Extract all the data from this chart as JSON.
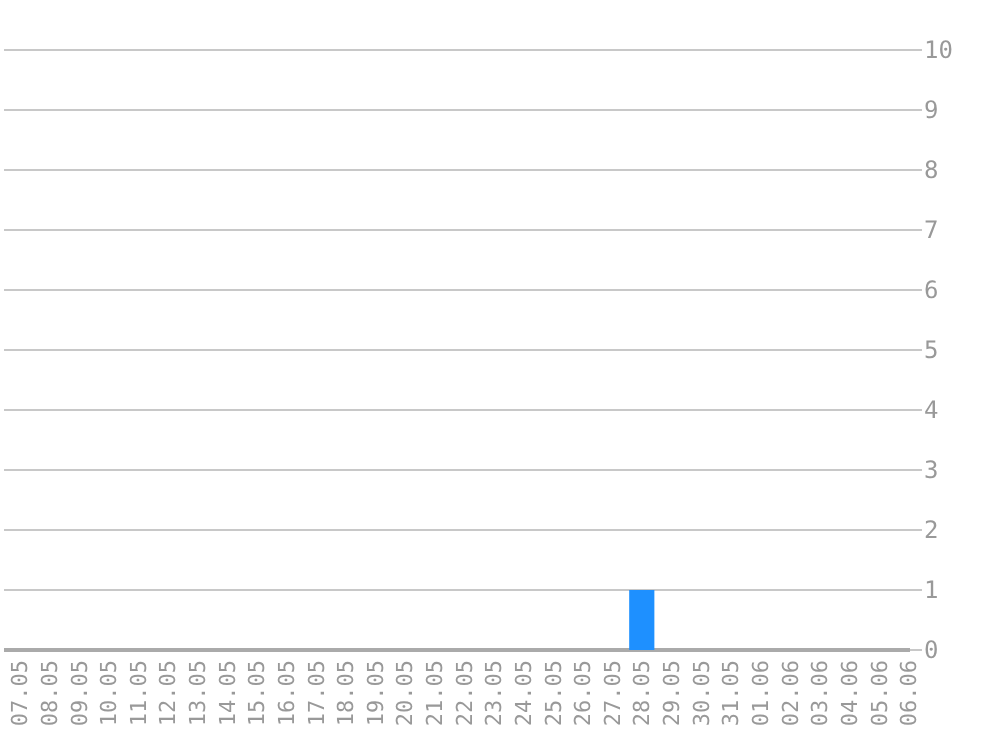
{
  "chart_data": {
    "type": "bar",
    "categories": [
      "07.05",
      "08.05",
      "09.05",
      "10.05",
      "11.05",
      "12.05",
      "13.05",
      "14.05",
      "15.05",
      "16.05",
      "17.05",
      "18.05",
      "19.05",
      "20.05",
      "21.05",
      "22.05",
      "23.05",
      "24.05",
      "25.05",
      "26.05",
      "27.05",
      "28.05",
      "29.05",
      "30.05",
      "31.05",
      "01.06",
      "02.06",
      "03.06",
      "04.06",
      "05.06",
      "06.06"
    ],
    "values": [
      0,
      0,
      0,
      0,
      0,
      0,
      0,
      0,
      0,
      0,
      0,
      0,
      0,
      0,
      0,
      0,
      0,
      0,
      0,
      0,
      0,
      1,
      0,
      0,
      0,
      0,
      0,
      0,
      0,
      0,
      0
    ],
    "color": "#1e90ff",
    "ylim": [
      0,
      10
    ],
    "yticks": [
      0,
      1,
      2,
      3,
      4,
      5,
      6,
      7,
      8,
      9,
      10
    ],
    "grid": "y"
  }
}
